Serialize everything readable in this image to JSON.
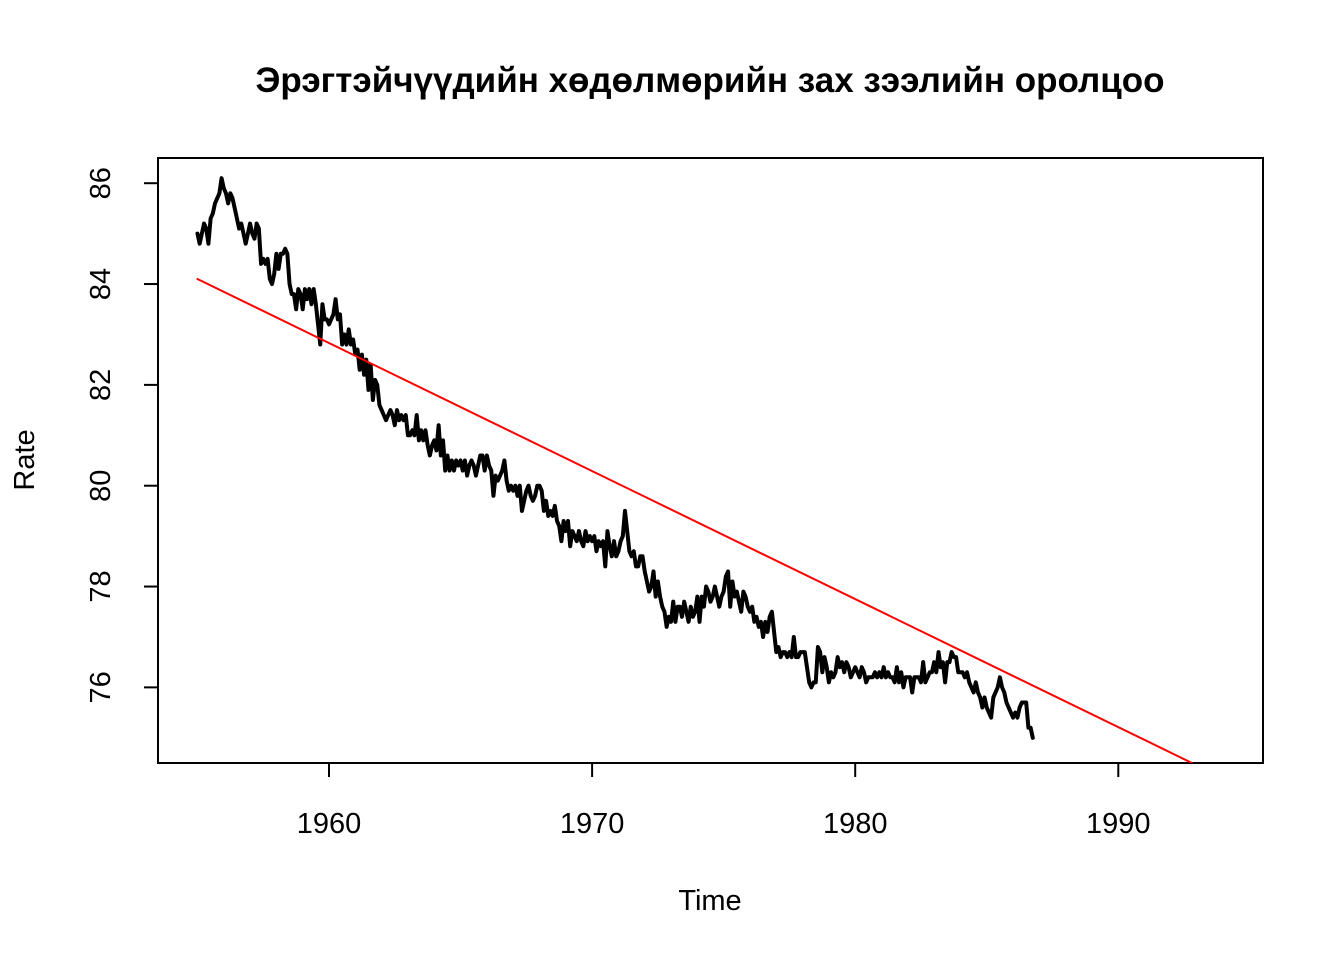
{
  "chart_data": {
    "type": "line",
    "title": "Эрэгтэйчүүдийн хөдөлмөрийн зах зээлийн оролцоо",
    "xlabel": "Time",
    "ylabel": "Rate",
    "xlim": [
      1953.5,
      1995.5
    ],
    "ylim": [
      74.5,
      86.5
    ],
    "x_ticks": [
      1960,
      1970,
      1980,
      1990
    ],
    "y_ticks": [
      76,
      78,
      80,
      82,
      84,
      86
    ],
    "grid": false,
    "legend": "none",
    "series": [
      {
        "style": "line",
        "color": "#000000",
        "x_start": 1955,
        "x_step": 0.0833333,
        "values": [
          85.0,
          84.8,
          85.0,
          85.2,
          85.1,
          84.8,
          85.3,
          85.4,
          85.6,
          85.7,
          85.8,
          86.1,
          85.9,
          85.8,
          85.6,
          85.8,
          85.7,
          85.5,
          85.3,
          85.1,
          85.2,
          85.0,
          84.8,
          85.0,
          85.2,
          85.0,
          84.9,
          85.2,
          85.1,
          84.4,
          84.5,
          84.4,
          84.5,
          84.1,
          84.0,
          84.2,
          84.6,
          84.3,
          84.6,
          84.6,
          84.7,
          84.6,
          84.0,
          83.8,
          83.8,
          83.5,
          83.9,
          83.8,
          83.5,
          83.9,
          83.7,
          83.9,
          83.6,
          83.9,
          83.6,
          83.2,
          82.8,
          83.6,
          83.3,
          83.3,
          83.2,
          83.3,
          83.4,
          83.7,
          83.3,
          83.4,
          82.8,
          83.0,
          82.8,
          83.1,
          82.8,
          82.9,
          82.6,
          82.7,
          82.3,
          82.6,
          82.2,
          82.5,
          81.9,
          82.4,
          81.7,
          82.1,
          82.0,
          81.6,
          81.5,
          81.4,
          81.3,
          81.4,
          81.5,
          81.4,
          81.2,
          81.5,
          81.3,
          81.4,
          81.3,
          81.4,
          81.0,
          81.0,
          81.1,
          81.0,
          81.4,
          80.9,
          81.1,
          80.9,
          81.1,
          80.8,
          80.6,
          80.8,
          80.9,
          80.7,
          81.2,
          80.6,
          80.9,
          80.3,
          80.6,
          80.3,
          80.5,
          80.3,
          80.5,
          80.4,
          80.5,
          80.3,
          80.5,
          80.2,
          80.4,
          80.5,
          80.4,
          80.2,
          80.4,
          80.6,
          80.6,
          80.3,
          80.6,
          80.4,
          80.3,
          79.8,
          80.2,
          80.1,
          80.2,
          80.3,
          80.5,
          80.1,
          79.9,
          80.0,
          79.9,
          80.0,
          79.8,
          80.0,
          79.5,
          79.7,
          79.9,
          80.0,
          79.8,
          79.7,
          79.8,
          80.0,
          80.0,
          79.9,
          79.5,
          79.7,
          79.4,
          79.5,
          79.4,
          79.6,
          79.3,
          79.2,
          78.9,
          79.3,
          79.1,
          79.3,
          78.8,
          79.1,
          79.0,
          78.9,
          79.1,
          78.9,
          78.8,
          79.1,
          78.9,
          79.0,
          78.9,
          79.0,
          78.7,
          78.9,
          78.8,
          78.9,
          78.4,
          79.1,
          78.8,
          78.6,
          78.9,
          78.6,
          78.7,
          78.9,
          79.0,
          79.5,
          79.1,
          78.7,
          78.6,
          78.7,
          78.4,
          78.4,
          78.6,
          78.6,
          78.3,
          78.1,
          77.9,
          78.0,
          78.3,
          77.8,
          78.1,
          77.8,
          77.6,
          77.5,
          77.2,
          77.4,
          77.3,
          77.7,
          77.3,
          77.6,
          77.6,
          77.4,
          77.7,
          77.5,
          77.3,
          77.6,
          77.4,
          77.5,
          77.8,
          77.3,
          77.8,
          77.6,
          78.0,
          77.9,
          77.7,
          77.8,
          78.0,
          77.8,
          77.6,
          77.8,
          77.9,
          78.2,
          78.3,
          77.6,
          78.1,
          77.8,
          77.9,
          77.7,
          77.5,
          77.9,
          77.8,
          77.6,
          77.5,
          77.6,
          77.3,
          77.4,
          77.2,
          77.3,
          77.0,
          77.3,
          77.1,
          77.4,
          77.5,
          77.1,
          76.7,
          76.8,
          76.6,
          76.7,
          76.7,
          76.6,
          76.7,
          76.6,
          77.0,
          76.6,
          76.6,
          76.7,
          76.7,
          76.7,
          76.4,
          76.1,
          76.0,
          76.1,
          76.1,
          76.8,
          76.7,
          76.3,
          76.6,
          76.4,
          76.1,
          76.3,
          76.2,
          76.3,
          76.6,
          76.4,
          76.5,
          76.3,
          76.5,
          76.4,
          76.2,
          76.3,
          76.4,
          76.3,
          76.2,
          76.4,
          76.3,
          76.1,
          76.2,
          76.2,
          76.2,
          76.3,
          76.2,
          76.3,
          76.2,
          76.4,
          76.2,
          76.3,
          76.2,
          76.2,
          76.1,
          76.4,
          76.1,
          76.3,
          76.0,
          76.2,
          76.2,
          76.2,
          75.9,
          76.2,
          76.2,
          76.2,
          76.1,
          76.5,
          76.1,
          76.2,
          76.3,
          76.3,
          76.5,
          76.3,
          76.7,
          76.4,
          76.5,
          76.1,
          76.5,
          76.5,
          76.7,
          76.6,
          76.6,
          76.3,
          76.3,
          76.3,
          76.2,
          76.3,
          76.1,
          76.0,
          75.9,
          76.1,
          75.9,
          75.8,
          75.6,
          75.8,
          75.6,
          75.5,
          75.4,
          75.8,
          75.9,
          76.0,
          76.2,
          76.0,
          75.9,
          75.7,
          75.6,
          75.5,
          75.4,
          75.5,
          75.4,
          75.6,
          75.7,
          75.7,
          75.7,
          75.2,
          75.2,
          75.0
        ]
      },
      {
        "style": "trend",
        "color": "#ff0000",
        "x": [
          1955.0,
          1992.8
        ],
        "values": [
          84.1,
          74.5
        ]
      }
    ]
  }
}
